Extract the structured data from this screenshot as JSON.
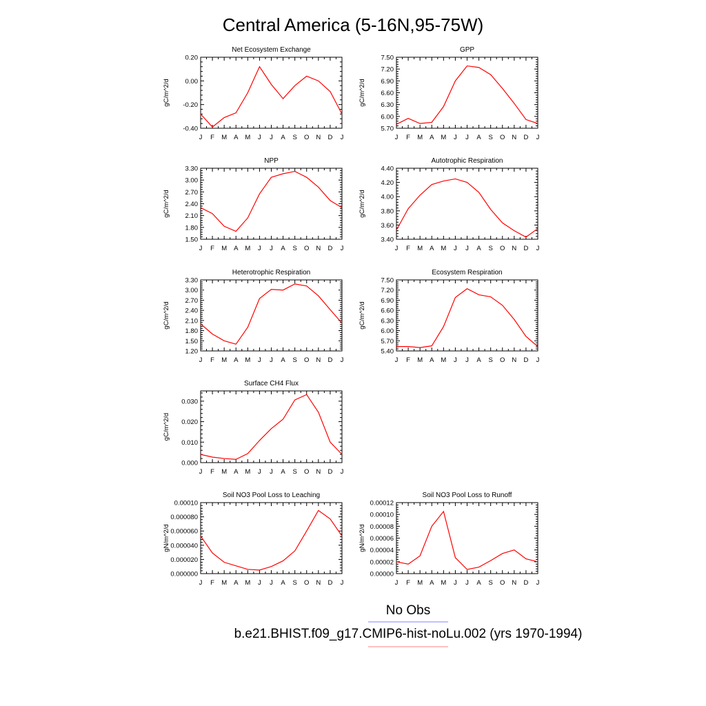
{
  "title": "Central America (5-16N,95-75W)",
  "months": [
    "J",
    "F",
    "M",
    "A",
    "M",
    "J",
    "J",
    "A",
    "S",
    "O",
    "N",
    "D",
    "J"
  ],
  "legend": [
    {
      "label": "No Obs",
      "color": "#8080ff"
    },
    {
      "label": "b.e21.BHIST.f09_g17.CMIP6-hist-noLu.002 (yrs 1970-1994)",
      "color": "#ff8080"
    }
  ],
  "line_color": "#ff0000",
  "chart_data": [
    {
      "type": "line",
      "title": "Net Ecosystem Exchange",
      "ylabel": "gC/m^2/d",
      "ylim": [
        -0.4,
        0.2
      ],
      "yticks": [
        -0.4,
        -0.2,
        0.0,
        0.2
      ],
      "yticklabels": [
        "-0.40",
        "-0.20",
        "0.00",
        "0.20"
      ],
      "values": [
        -0.28,
        -0.39,
        -0.31,
        -0.27,
        -0.1,
        0.12,
        -0.03,
        -0.15,
        -0.04,
        0.04,
        0.0,
        -0.09,
        -0.28
      ]
    },
    {
      "type": "line",
      "title": "GPP",
      "ylabel": "gC/m^2/d",
      "ylim": [
        5.7,
        7.5
      ],
      "yticks": [
        5.7,
        6.0,
        6.3,
        6.6,
        6.9,
        7.2,
        7.5
      ],
      "yticklabels": [
        "5.70",
        "6.00",
        "6.30",
        "6.60",
        "6.90",
        "7.20",
        "7.50"
      ],
      "values": [
        5.8,
        5.95,
        5.82,
        5.85,
        6.25,
        6.9,
        7.28,
        7.24,
        7.06,
        6.71,
        6.33,
        5.92,
        5.82
      ]
    },
    {
      "type": "line",
      "title": "NPP",
      "ylabel": "gC/m^2/d",
      "ylim": [
        1.5,
        3.3
      ],
      "yticks": [
        1.5,
        1.8,
        2.1,
        2.4,
        2.7,
        3.0,
        3.3
      ],
      "yticklabels": [
        "1.50",
        "1.80",
        "2.10",
        "2.40",
        "2.70",
        "3.00",
        "3.30"
      ],
      "values": [
        2.3,
        2.15,
        1.83,
        1.7,
        2.04,
        2.65,
        3.07,
        3.16,
        3.22,
        3.07,
        2.82,
        2.48,
        2.3
      ]
    },
    {
      "type": "line",
      "title": "Autotrophic Respiration",
      "ylabel": "gC/m^2/d",
      "ylim": [
        3.4,
        4.4
      ],
      "yticks": [
        3.4,
        3.6,
        3.8,
        4.0,
        4.2,
        4.4
      ],
      "yticklabels": [
        "3.40",
        "3.60",
        "3.80",
        "4.00",
        "4.20",
        "4.40"
      ],
      "values": [
        3.53,
        3.83,
        4.02,
        4.17,
        4.22,
        4.25,
        4.2,
        4.06,
        3.82,
        3.63,
        3.52,
        3.43,
        3.55
      ]
    },
    {
      "type": "line",
      "title": "Heterotrophic Respiration",
      "ylabel": "gC/m^2/d",
      "ylim": [
        1.2,
        3.3
      ],
      "yticks": [
        1.2,
        1.5,
        1.8,
        2.1,
        2.4,
        2.7,
        3.0,
        3.3
      ],
      "yticklabels": [
        "1.20",
        "1.50",
        "1.80",
        "2.10",
        "2.40",
        "2.70",
        "3.00",
        "3.30"
      ],
      "values": [
        2.0,
        1.7,
        1.5,
        1.4,
        1.9,
        2.75,
        3.02,
        3.0,
        3.18,
        3.12,
        2.83,
        2.42,
        2.02
      ]
    },
    {
      "type": "line",
      "title": "Ecosystem Respiration",
      "ylabel": "gC/m^2/d",
      "ylim": [
        5.4,
        7.5
      ],
      "yticks": [
        5.4,
        5.7,
        6.0,
        6.3,
        6.6,
        6.9,
        7.2,
        7.5
      ],
      "yticklabels": [
        "5.40",
        "5.70",
        "6.00",
        "6.30",
        "6.60",
        "6.90",
        "7.20",
        "7.50"
      ],
      "values": [
        5.53,
        5.53,
        5.5,
        5.55,
        6.12,
        6.98,
        7.24,
        7.06,
        7.0,
        6.75,
        6.33,
        5.83,
        5.53
      ]
    },
    {
      "type": "line",
      "title": "Surface CH4 Flux",
      "ylabel": "gC/m^2/d",
      "ylim": [
        0.0,
        0.035
      ],
      "yticks": [
        0.0,
        0.01,
        0.02,
        0.03
      ],
      "yticklabels": [
        "0.000",
        "0.010",
        "0.020",
        "0.030"
      ],
      "values": [
        0.004,
        0.0027,
        0.002,
        0.0016,
        0.0044,
        0.0108,
        0.0166,
        0.0212,
        0.0306,
        0.0332,
        0.0246,
        0.01,
        0.004
      ]
    },
    {
      "type": "line",
      "title": "Soil NO3 Pool Loss to Leaching",
      "ylabel": "gN/m^2/d",
      "ylim": [
        0,
        0.0001
      ],
      "yticks": [
        0,
        2e-05,
        4e-05,
        6e-05,
        8e-05,
        0.0001
      ],
      "yticklabels": [
        "0.000000",
        "0.000020",
        "0.000040",
        "0.000060",
        "0.000080",
        "0.00010"
      ],
      "values": [
        5.3e-05,
        2.9e-05,
        1.6e-05,
        1.1e-05,
        6e-06,
        5e-06,
        1e-05,
        1.8e-05,
        3.2e-05,
        6e-05,
        8.9e-05,
        7.7e-05,
        5.3e-05
      ]
    },
    {
      "type": "line",
      "title": "Soil NO3 Pool Loss to Runoff",
      "ylabel": "gN/m^2/d",
      "ylim": [
        0,
        0.00012
      ],
      "yticks": [
        0,
        2e-05,
        4e-05,
        6e-05,
        8e-05,
        0.0001,
        0.00012
      ],
      "yticklabels": [
        "0.00000",
        "0.00002",
        "0.00004",
        "0.00006",
        "0.00008",
        "0.00010",
        "0.00012"
      ],
      "values": [
        2e-05,
        1.6e-05,
        3e-05,
        8e-05,
        0.000105,
        2.7e-05,
        7e-06,
        1.1e-05,
        2.2e-05,
        3.4e-05,
        4e-05,
        2.5e-05,
        2e-05
      ]
    }
  ]
}
